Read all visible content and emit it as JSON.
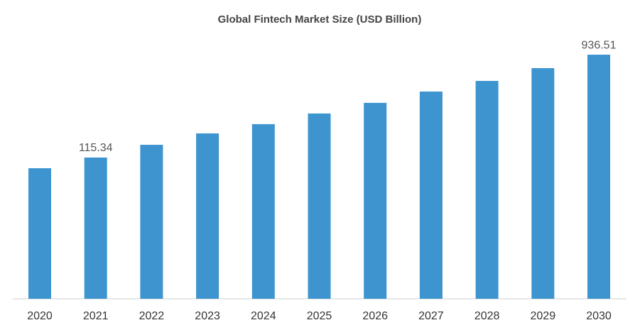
{
  "chart_data": {
    "type": "bar",
    "title": "Global Fintech Market Size (USD Billion)",
    "categories": [
      "2020",
      "2021",
      "2022",
      "2023",
      "2024",
      "2025",
      "2026",
      "2027",
      "2028",
      "2029",
      "2030"
    ],
    "values": [
      30,
      115.34,
      217,
      308,
      382,
      467,
      552,
      642,
      727,
      829,
      936.51
    ],
    "value_labels": [
      null,
      "115.34",
      null,
      null,
      null,
      null,
      null,
      null,
      null,
      null,
      "936.51"
    ],
    "color": "#3d94cf",
    "ylim": [
      -1012,
      1033
    ]
  }
}
